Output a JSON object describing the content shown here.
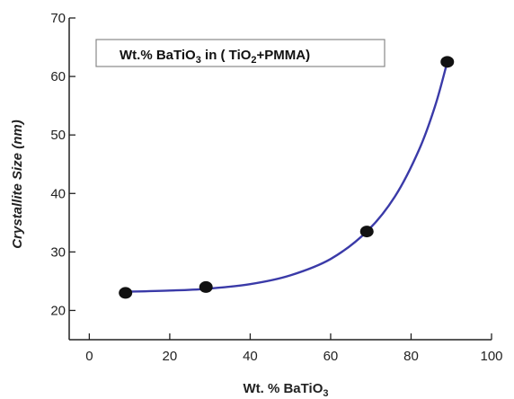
{
  "chart_data": {
    "type": "scatter",
    "legend_label": {
      "prefix": "Wt.% BaTiO",
      "sub1": "3",
      "mid": " in ( TiO",
      "sub2": "2",
      "suffix": "+PMMA)"
    },
    "xlabel": {
      "prefix": "Wt. % BaTiO",
      "sub": "3"
    },
    "ylabel": "Crystallite Size (nm)",
    "xlim": [
      -5,
      100
    ],
    "ylim": [
      15,
      70
    ],
    "xticks": [
      0,
      20,
      40,
      60,
      80,
      100
    ],
    "yticks": [
      20,
      30,
      40,
      50,
      60,
      70
    ],
    "series": [
      {
        "x": [
          9,
          29,
          69,
          89
        ],
        "y": [
          23,
          24,
          33.5,
          62.5
        ]
      }
    ],
    "curve": {
      "x": [
        9,
        20,
        29,
        40,
        50,
        60,
        69,
        76,
        82,
        86,
        89
      ],
      "y": [
        23.2,
        23.4,
        23.7,
        24.5,
        26.0,
        28.8,
        33.5,
        39.5,
        47.5,
        55.0,
        62.5
      ]
    },
    "grid": false,
    "legend_position": "top-left",
    "colors": {
      "marker": "#111111",
      "curve": "#3a3aa8",
      "axis": "#222222"
    }
  }
}
